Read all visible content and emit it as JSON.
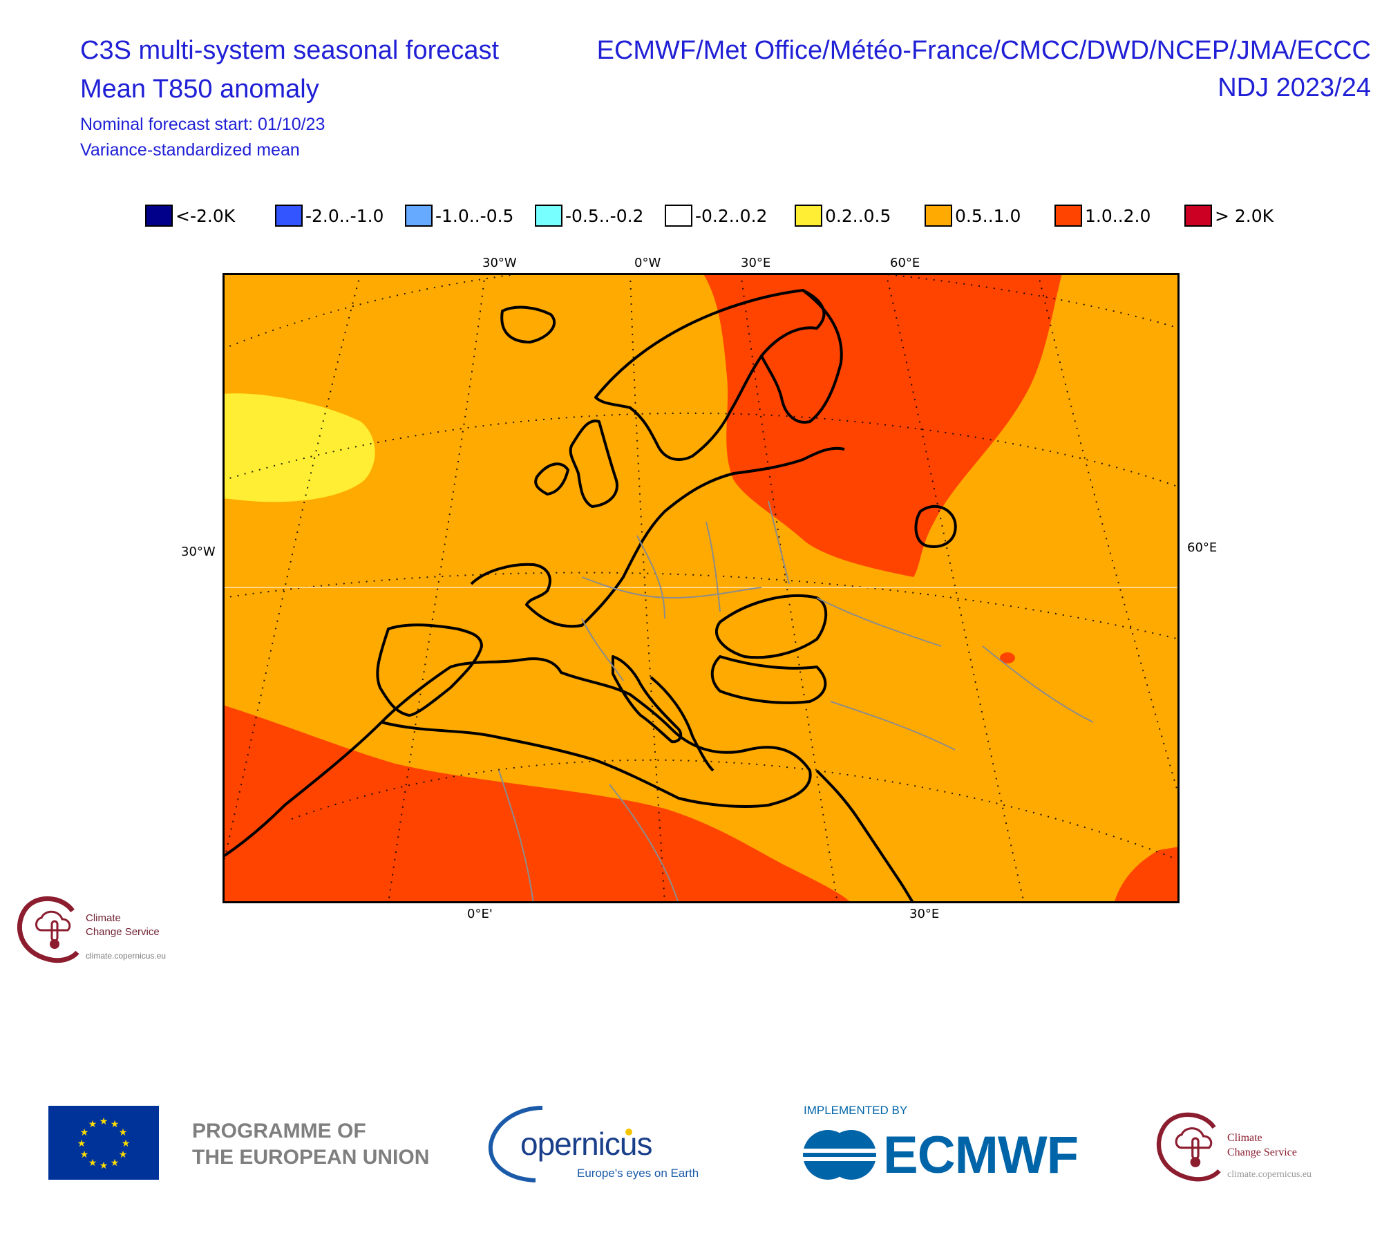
{
  "header": {
    "title_line1": "C3S multi-system seasonal forecast",
    "title_line2": "Mean T850 anomaly",
    "subtitle_line1": "Nominal forecast start: 01/10/23",
    "subtitle_line2": "Variance-standardized mean",
    "centres": "ECMWF/Met Office/Météo-France/CMCC/DWD/NCEP/JMA/ECCC",
    "period": "NDJ 2023/24"
  },
  "legend": [
    {
      "label": "<-2.0K",
      "color": "#00008b"
    },
    {
      "label": "-2.0..-1.0",
      "color": "#3355ff"
    },
    {
      "label": "-1.0..-0.5",
      "color": "#66aaff"
    },
    {
      "label": "-0.5..-0.2",
      "color": "#77ffff"
    },
    {
      "label": "-0.2..0.2",
      "color": "#ffffff"
    },
    {
      "label": "0.2..0.5",
      "color": "#ffee33"
    },
    {
      "label": "0.5..1.0",
      "color": "#ffaa00"
    },
    {
      "label": "1.0..2.0",
      "color": "#ff4400"
    },
    {
      "label": "> 2.0K",
      "color": "#cc0022"
    }
  ],
  "map": {
    "top_ticks": [
      "30°W",
      "0°W",
      "30°E",
      "60°E"
    ],
    "bottom_ticks": [
      "0°E'",
      "30°E"
    ],
    "left_ticks": [
      "30°W"
    ],
    "right_ticks": [
      "60°E"
    ],
    "background_category": "0.5..1.0",
    "regions": [
      {
        "area": "North Atlantic west of Ireland",
        "category": "0.2..0.5"
      },
      {
        "area": "Fennoscandia to western Russia",
        "category": "1.0..2.0"
      },
      {
        "area": "North Africa and subtropical Atlantic",
        "category": "1.0..2.0"
      },
      {
        "area": "Arabian Peninsula edge",
        "category": "1.0..2.0"
      },
      {
        "area": "Small patch in Caucasus",
        "category": "1.0..2.0"
      }
    ]
  },
  "logos": {
    "c3s_name_line1": "Climate",
    "c3s_name_line2": "Change Service",
    "c3s_url": "climate.copernicus.eu",
    "eu_line1": "PROGRAMME OF",
    "eu_line2": "THE EUROPEAN UNION",
    "copernicus_name": "opernicus",
    "copernicus_tagline": "Europe's eyes on Earth",
    "implemented_by": "IMPLEMENTED BY",
    "ecmwf_name": "ECMWF"
  },
  "colors": {
    "title_text": "#1f1fd6",
    "ecmwf_blue": "#0064a8",
    "c3s_maroon": "#8b1d2f",
    "eu_blue": "#003399",
    "eu_star": "#ffdd00"
  }
}
